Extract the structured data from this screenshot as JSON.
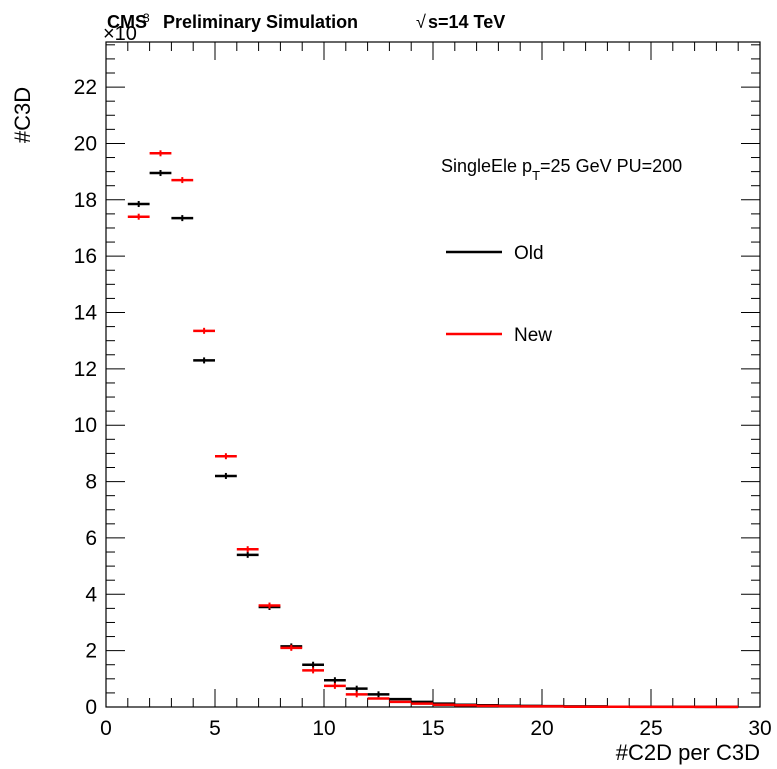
{
  "header": {
    "cms_label": "CMS",
    "subtitle": "Preliminary Simulation",
    "energy": "s=14 TeV",
    "sqrt_symbol": "√"
  },
  "chart_data": {
    "type": "histogram",
    "ylabel": "#C3D",
    "xlabel": "#C2D per C3D",
    "y_multiplier_label": "×10",
    "y_multiplier_exponent": "3",
    "xlim": [
      0,
      30
    ],
    "ylim": [
      0,
      23.6
    ],
    "x_ticks": [
      0,
      5,
      10,
      15,
      20,
      25,
      30
    ],
    "y_ticks": [
      0,
      2,
      4,
      6,
      8,
      10,
      12,
      14,
      16,
      18,
      20,
      22
    ],
    "annotation": {
      "prefix": "SingleEle p",
      "sub": "T",
      "suffix": "=25 GeV PU=200"
    },
    "legend_position": "right",
    "series": [
      {
        "name": "Old",
        "color": "#000000",
        "bins": [
          {
            "x": 1.5,
            "y": 17.85
          },
          {
            "x": 2.5,
            "y": 18.95
          },
          {
            "x": 3.5,
            "y": 17.35
          },
          {
            "x": 4.5,
            "y": 12.3
          },
          {
            "x": 5.5,
            "y": 8.2
          },
          {
            "x": 6.5,
            "y": 5.4
          },
          {
            "x": 7.5,
            "y": 3.55
          },
          {
            "x": 8.5,
            "y": 2.15
          },
          {
            "x": 9.5,
            "y": 1.5
          },
          {
            "x": 10.5,
            "y": 0.95
          },
          {
            "x": 11.5,
            "y": 0.65
          },
          {
            "x": 12.5,
            "y": 0.45
          },
          {
            "x": 13.5,
            "y": 0.28
          },
          {
            "x": 14.5,
            "y": 0.18
          },
          {
            "x": 15.5,
            "y": 0.12
          },
          {
            "x": 16.5,
            "y": 0.08
          },
          {
            "x": 17.5,
            "y": 0.06
          },
          {
            "x": 18.5,
            "y": 0.05
          },
          {
            "x": 19.5,
            "y": 0.04
          },
          {
            "x": 20.5,
            "y": 0.03
          },
          {
            "x": 21.5,
            "y": 0.02
          },
          {
            "x": 22.5,
            "y": 0.02
          },
          {
            "x": 23.5,
            "y": 0.01
          },
          {
            "x": 24.5,
            "y": 0.01
          },
          {
            "x": 25.5,
            "y": 0.01
          },
          {
            "x": 26.5,
            "y": 0.01
          },
          {
            "x": 27.5,
            "y": 0.005
          },
          {
            "x": 28.5,
            "y": 0.005
          }
        ]
      },
      {
        "name": "New",
        "color": "#ff0000",
        "bins": [
          {
            "x": 1.5,
            "y": 17.4
          },
          {
            "x": 2.5,
            "y": 19.65
          },
          {
            "x": 3.5,
            "y": 18.7
          },
          {
            "x": 4.5,
            "y": 13.35
          },
          {
            "x": 5.5,
            "y": 8.9
          },
          {
            "x": 6.5,
            "y": 5.6
          },
          {
            "x": 7.5,
            "y": 3.6
          },
          {
            "x": 8.5,
            "y": 2.1
          },
          {
            "x": 9.5,
            "y": 1.3
          },
          {
            "x": 10.5,
            "y": 0.75
          },
          {
            "x": 11.5,
            "y": 0.45
          },
          {
            "x": 12.5,
            "y": 0.3
          },
          {
            "x": 13.5,
            "y": 0.18
          },
          {
            "x": 14.5,
            "y": 0.12
          },
          {
            "x": 15.5,
            "y": 0.08
          },
          {
            "x": 16.5,
            "y": 0.06
          },
          {
            "x": 17.5,
            "y": 0.04
          },
          {
            "x": 18.5,
            "y": 0.03
          },
          {
            "x": 19.5,
            "y": 0.02
          },
          {
            "x": 20.5,
            "y": 0.02
          },
          {
            "x": 21.5,
            "y": 0.01
          },
          {
            "x": 22.5,
            "y": 0.01
          },
          {
            "x": 23.5,
            "y": 0.01
          },
          {
            "x": 24.5,
            "y": 0.005
          },
          {
            "x": 25.5,
            "y": 0.005
          },
          {
            "x": 26.5,
            "y": 0.005
          },
          {
            "x": 27.5,
            "y": 0.003
          },
          {
            "x": 28.5,
            "y": 0.003
          }
        ]
      }
    ]
  }
}
